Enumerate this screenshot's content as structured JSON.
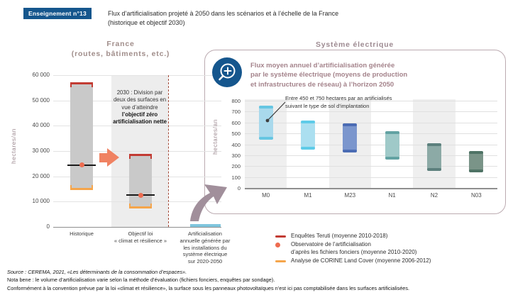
{
  "badge": {
    "label": "Enseignement n°13"
  },
  "title": {
    "line1": "Flux d’artificialisation projeté à 2050 dans les scénarios et à l’échelle de la France",
    "line2": "(historique et objectif 2030)"
  },
  "colors": {
    "accent_blue": "#15568d",
    "heading_taupe": "#9d8a91",
    "panel_border": "#bcabb1",
    "bar_gray": "#c9c9c9",
    "teruti_red": "#c23b33",
    "corine_orange": "#f5a54b",
    "observatoire_dot": "#ee6c50",
    "arrow_salmon": "#f08262",
    "curved_arrow": "#a18f9b",
    "dashed_line": "#a34a38",
    "grid_gray": "#e3e3e3",
    "band_gray": "#ededed",
    "electric_bar_blue": "#7fc5dd"
  },
  "chart_data": [
    {
      "type": "range-bar",
      "id": "france",
      "title": "France (routes, bâtiments, etc.)",
      "title_line1": "France",
      "title_line2": "(routes, bâtiments, etc.)",
      "ylabel": "hectares/an",
      "ylim": [
        0,
        60000
      ],
      "ytick_step": 10000,
      "grid": true,
      "categories": [
        "Historique",
        "Objectif loi\n« climat et résilience »",
        "Artificialisation\nannuelle générée par\nles installations du\nsystème électrique\nsur 2020-2050"
      ],
      "bars": [
        {
          "category": "Historique",
          "range": [
            15000,
            57000
          ],
          "enquetes_teruti": 57000,
          "observatoire_fichiers_fonciers": 24500,
          "corine_land_cover": 15000
        },
        {
          "category": "Objectif loi « climat et résilience »",
          "range": [
            7500,
            28500
          ],
          "enquetes_teruti": 28500,
          "observatoire_fichiers_fonciers": 12500,
          "corine_land_cover": 7500
        },
        {
          "category": "Artificialisation annuelle générée par les installations du système électrique sur 2020-2050",
          "range": [
            0,
            600
          ]
        }
      ],
      "annotation": {
        "normal": "2030 : Division par deux des surfaces en vue d’atteindre",
        "bold": "l’objectif zéro artificialisation nette"
      }
    },
    {
      "type": "range-bar",
      "id": "systeme-electrique",
      "title": "Système électrique",
      "subtitle_line1": "Flux moyen annuel d’artificialisation générée",
      "subtitle_line2": "par le système électrique (moyens de production",
      "subtitle_line3": "et infrastructures de réseau) à l’horizon 2050",
      "ylabel": "hectares/an",
      "ylim": [
        0,
        800
      ],
      "ytick_step": 100,
      "grid": true,
      "categories": [
        "M0",
        "M1",
        "M23",
        "N1",
        "N2",
        "N03"
      ],
      "bars": [
        {
          "category": "M0",
          "range": [
            450,
            750
          ],
          "fill": "#a9d9ec",
          "cap": "#66c6e2"
        },
        {
          "category": "M1",
          "range": [
            360,
            610
          ],
          "fill": "#abdff0",
          "cap": "#5ecbe8"
        },
        {
          "category": "M23",
          "range": [
            330,
            585
          ],
          "fill": "#7b96cd",
          "cap": "#4b6cb4"
        },
        {
          "category": "N1",
          "range": [
            265,
            515
          ],
          "fill": "#9fc9c8",
          "cap": "#62a2a2"
        },
        {
          "category": "N2",
          "range": [
            165,
            405
          ],
          "fill": "#8caaa6",
          "cap": "#5c807d"
        },
        {
          "category": "N03",
          "range": [
            150,
            330
          ],
          "fill": "#7a9488",
          "cap": "#4f7365"
        }
      ],
      "annotation": "Entre 450 et 750 hectares par an artificialisés\nsuivant le type de sol d’implantation"
    }
  ],
  "legend": {
    "items": [
      {
        "marker": "line",
        "color": "#c23b33",
        "label": "Enquêtes Teruti (moyenne 2010-2018)"
      },
      {
        "marker": "dot",
        "color": "#ee6c50",
        "label": "Observatoire de l’artificialisation\nd’après les fichiers fonciers (moyenne 2010-2020)"
      },
      {
        "marker": "line",
        "color": "#f5a54b",
        "label": "Analyse de CORINE Land Cover (moyenne 2006-2012)"
      }
    ]
  },
  "footer": {
    "line1": "Source : CEREMA, 2021, «Les déterminants de la consommation d’espaces».",
    "line2": "Nota bene : le volume d’artificialisation varie selon la méthode d’évaluation (fichiers fonciers, enquêtes par sondage).",
    "line3": "Conformément à la convention prévue par la loi «climat et résilience», la surface sous les panneaux photovoltaïques n’est ici pas comptabilisée dans les surfaces artificialisées."
  }
}
